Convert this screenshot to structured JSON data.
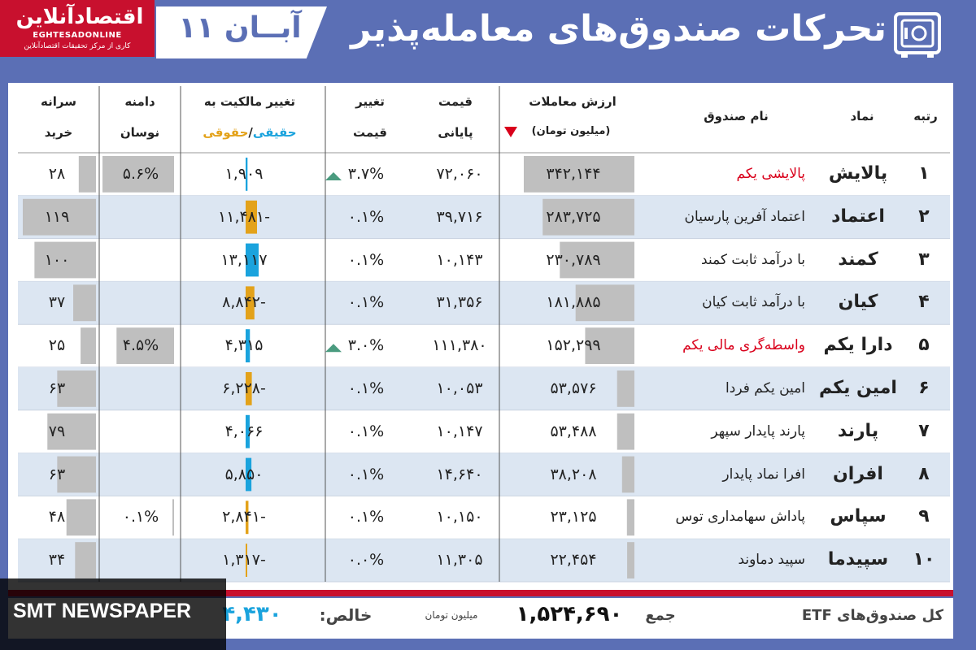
{
  "header": {
    "logo_name": "اقتصادآنلاین",
    "logo_en": "EGHTESADONLINE",
    "logo_sub": "کاری از مرکز تحقیقات اقتصادآنلاین",
    "date": "۱۱ آبــان",
    "title": "تحرکات صندوق‌های معامله‌پذیر"
  },
  "columns": {
    "rank": "رتبه",
    "symbol": "نماد",
    "name": "نام صندوق",
    "value_line1": "ارزش معاملات",
    "value_line2": "(میلیون تومان)",
    "price_line1": "قیمت",
    "price_line2": "پایانی",
    "change_line1": "تغییر",
    "change_line2": "قیمت",
    "ownership_line1": "تغییر مالکیت به",
    "ownership_real": "حقیقی",
    "ownership_sep": "/",
    "ownership_legal": "حقوقی",
    "range_line1": "دامنه",
    "range_line2": "نوسان",
    "percap_line1": "سرانه",
    "percap_line2": "خرید"
  },
  "colors": {
    "real": "#1aa3dd",
    "legal": "#e3a21a",
    "bar": "#bfbfbf",
    "up": "#4a9b7f",
    "down": "#d9001b",
    "stripe": "#dce6f2"
  },
  "chart_data": {
    "type": "table",
    "rows": [
      {
        "rank": "۱",
        "symbol": "پالایش",
        "name": "پالایشی یکم",
        "name_red": true,
        "value": "۳۴۲,۱۴۴",
        "value_num": 342144,
        "price": "۷۲,۰۶۰",
        "change": "۳.۷%",
        "up": true,
        "ownership": "۱,۹۰۹",
        "ownership_num": 1909,
        "range": "۵.۶%",
        "range_num": 5.6,
        "percap": "۲۸",
        "percap_num": 28
      },
      {
        "rank": "۲",
        "symbol": "اعتماد",
        "name": "اعتماد آفرین پارسیان",
        "name_red": false,
        "value": "۲۸۳,۷۲۵",
        "value_num": 283725,
        "price": "۳۹,۷۱۶",
        "change": "۰.۱%",
        "up": false,
        "ownership": "-۱۱,۴۸۱",
        "ownership_num": -11481,
        "range": "",
        "range_num": 0,
        "percap": "۱۱۹",
        "percap_num": 119
      },
      {
        "rank": "۳",
        "symbol": "کمند",
        "name": "با درآمد ثابت کمند",
        "name_red": false,
        "value": "۲۳۰,۷۸۹",
        "value_num": 230789,
        "price": "۱۰,۱۴۳",
        "change": "۰.۱%",
        "up": false,
        "ownership": "۱۳,۱۱۷",
        "ownership_num": 13117,
        "range": "",
        "range_num": 0,
        "percap": "۱۰۰",
        "percap_num": 100
      },
      {
        "rank": "۴",
        "symbol": "کیان",
        "name": "با درآمد ثابت کیان",
        "name_red": false,
        "value": "۱۸۱,۸۸۵",
        "value_num": 181885,
        "price": "۳۱,۳۵۶",
        "change": "۰.۱%",
        "up": false,
        "ownership": "-۸,۸۴۲",
        "ownership_num": -8842,
        "range": "",
        "range_num": 0,
        "percap": "۳۷",
        "percap_num": 37
      },
      {
        "rank": "۵",
        "symbol": "دارا یکم",
        "name": "واسطه‌گری مالی یکم",
        "name_red": true,
        "value": "۱۵۲,۲۹۹",
        "value_num": 152299,
        "price": "۱۱۱,۳۸۰",
        "change": "۳.۰%",
        "up": true,
        "ownership": "۴,۳۱۵",
        "ownership_num": 4315,
        "range": "۴.۵%",
        "range_num": 4.5,
        "percap": "۲۵",
        "percap_num": 25
      },
      {
        "rank": "۶",
        "symbol": "امین یکم",
        "name": "امین یکم فردا",
        "name_red": false,
        "value": "۵۳,۵۷۶",
        "value_num": 53576,
        "price": "۱۰,۰۵۳",
        "change": "۰.۱%",
        "up": false,
        "ownership": "-۶,۲۲۸",
        "ownership_num": -6228,
        "range": "",
        "range_num": 0,
        "percap": "۶۳",
        "percap_num": 63
      },
      {
        "rank": "۷",
        "symbol": "پارند",
        "name": "پارند پایدار سپهر",
        "name_red": false,
        "value": "۵۳,۴۸۸",
        "value_num": 53488,
        "price": "۱۰,۱۴۷",
        "change": "۰.۱%",
        "up": false,
        "ownership": "۴,۰۶۶",
        "ownership_num": 4066,
        "range": "",
        "range_num": 0,
        "percap": "۷۹",
        "percap_num": 79
      },
      {
        "rank": "۸",
        "symbol": "افران",
        "name": "افرا نماد پایدار",
        "name_red": false,
        "value": "۳۸,۲۰۸",
        "value_num": 38208,
        "price": "۱۴,۶۴۰",
        "change": "۰.۱%",
        "up": false,
        "ownership": "۵,۸۵۰",
        "ownership_num": 5850,
        "range": "",
        "range_num": 0,
        "percap": "۶۳",
        "percap_num": 63
      },
      {
        "rank": "۹",
        "symbol": "سپاس",
        "name": "پاداش سهامداری توس",
        "name_red": false,
        "value": "۲۳,۱۲۵",
        "value_num": 23125,
        "price": "۱۰,۱۵۰",
        "change": "۰.۱%",
        "up": false,
        "ownership": "-۲,۸۴۱",
        "ownership_num": -2841,
        "range": "۰.۱%",
        "range_num": 0.1,
        "percap": "۴۸",
        "percap_num": 48
      },
      {
        "rank": "۱۰",
        "symbol": "سپیدما",
        "name": "سپید دماوند",
        "name_red": false,
        "value": "۲۲,۴۵۴",
        "value_num": 22454,
        "price": "۱۱,۳۰۵",
        "change": "۰.۰%",
        "up": false,
        "ownership": "-۱,۳۱۷",
        "ownership_num": -1317,
        "range": "",
        "range_num": 0,
        "percap": "۳۴",
        "percap_num": 34
      }
    ]
  },
  "footer": {
    "label": "کل صندوق‌های ETF",
    "total_label": "جمع",
    "total": "۱,۵۲۴,۶۹۰",
    "unit": "میلیون تومان",
    "net_label": "خالص:",
    "net_value": "۴,۴۳۰"
  },
  "watermark": "SMT NEWSPAPER"
}
